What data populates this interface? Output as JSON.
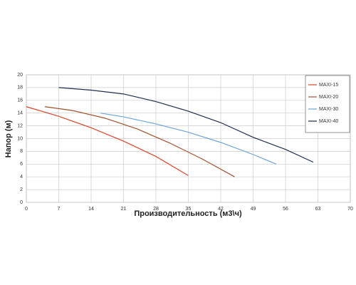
{
  "chart_data": {
    "type": "line",
    "xlabel": "Производительность (м3\\ч)",
    "ylabel": "Напор (м)",
    "xlim": [
      0,
      70
    ],
    "xticks": [
      0,
      7,
      14,
      21,
      28,
      35,
      42,
      49,
      56,
      63,
      70
    ],
    "ylim": [
      0,
      20
    ],
    "yticks": [
      0,
      2,
      4,
      6,
      8,
      10,
      12,
      14,
      16,
      18,
      20
    ],
    "grid": true,
    "legend": "upper right",
    "series": [
      {
        "name": "MAXI-15",
        "color": "#d9452b",
        "x": [
          0,
          7,
          14,
          21,
          28,
          35
        ],
        "values": [
          15,
          13.5,
          11.7,
          9.6,
          7.2,
          4.2
        ]
      },
      {
        "name": "MAXI-20",
        "color": "#a0522d",
        "x": [
          4,
          10,
          17,
          24,
          31,
          38,
          45
        ],
        "values": [
          15,
          14.4,
          13.2,
          11.5,
          9.3,
          6.8,
          4
        ]
      },
      {
        "name": "MAXI-30",
        "color": "#6fa3d8",
        "x": [
          16,
          21,
          28,
          35,
          42,
          49,
          54
        ],
        "values": [
          14,
          13.4,
          12.3,
          11,
          9.4,
          7.5,
          6
        ]
      },
      {
        "name": "MAXI-40",
        "color": "#1f2d4d",
        "x": [
          7,
          14,
          21,
          28,
          35,
          42,
          49,
          56,
          62
        ],
        "values": [
          18,
          17.6,
          17,
          15.8,
          14.3,
          12.5,
          10.2,
          8.3,
          6.3
        ]
      }
    ]
  }
}
